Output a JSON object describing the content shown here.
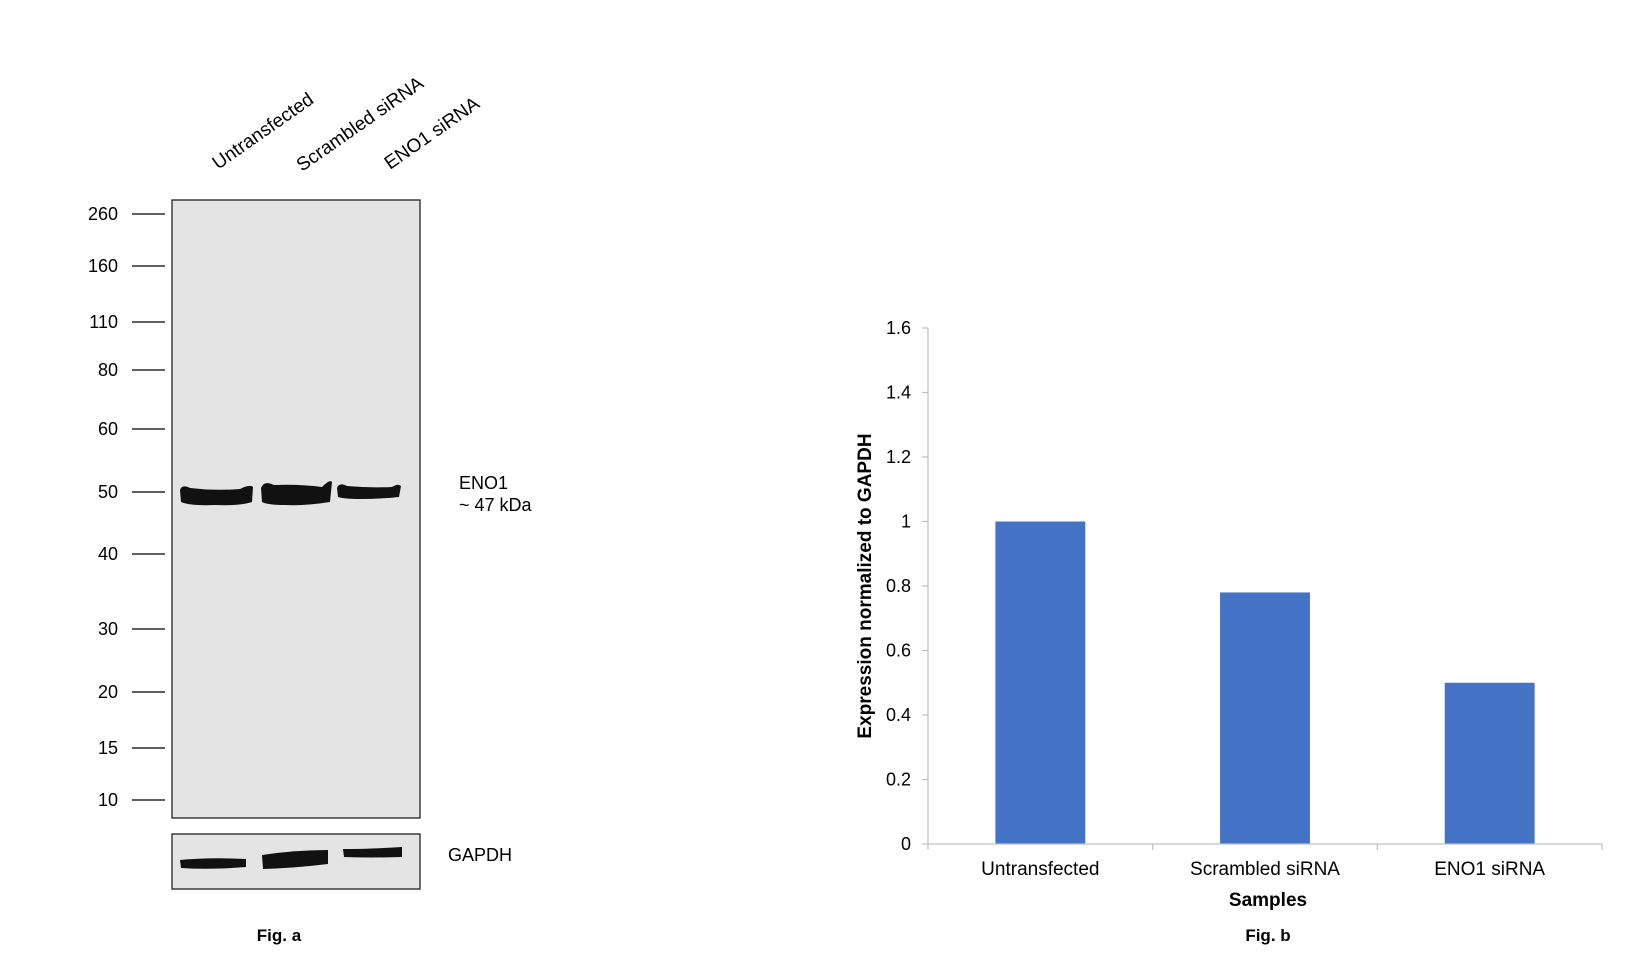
{
  "figure_a": {
    "caption": "Fig. a",
    "lane_labels": [
      "Untransfected",
      "Scrambled siRNA",
      "ENO1 siRNA"
    ],
    "markers": [
      "260",
      "160",
      "110",
      "80",
      "60",
      "50",
      "40",
      "30",
      "20",
      "15",
      "10"
    ],
    "band_label_line1": "ENO1",
    "band_label_line2": "~ 47 kDa",
    "loading_control_label": "GAPDH",
    "band_intensity": [
      1.0,
      1.0,
      0.55
    ],
    "gapdh_intensity": [
      0.8,
      1.0,
      0.75
    ],
    "panel_color": "#e4e4e4",
    "band_color": "#111111"
  },
  "figure_b": {
    "caption": "Fig. b"
  },
  "chart_data": {
    "type": "bar",
    "categories": [
      "Untransfected",
      "Scrambled siRNA",
      "ENO1 siRNA"
    ],
    "values": [
      1.0,
      0.78,
      0.5
    ],
    "xlabel": "Samples",
    "ylabel": "Expression normalized to GAPDH",
    "ylim": [
      0,
      1.6
    ],
    "yticks": [
      "0",
      "0.2",
      "0.4",
      "0.6",
      "0.8",
      "1",
      "1.2",
      "1.4",
      "1.6"
    ],
    "grid": false,
    "bar_color": "#4472c4",
    "axis_color": "#bfbfbf"
  }
}
